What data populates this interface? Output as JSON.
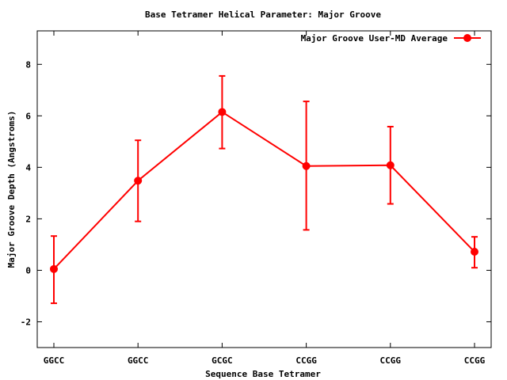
{
  "chart_data": {
    "type": "line",
    "title": "Base Tetramer Helical Parameter: Major Groove",
    "xlabel": "Sequence Base Tetramer",
    "ylabel": "Major Groove Depth (Angstroms)",
    "categories": [
      "GGCC",
      "GGCC",
      "GCGC",
      "CCGG",
      "CCGG",
      "CCGG"
    ],
    "ylim": [
      -3,
      9.3
    ],
    "yticks": [
      -2,
      0,
      2,
      4,
      6,
      8
    ],
    "grid": false,
    "legend_position": "top-right",
    "series": [
      {
        "name": "Major Groove User-MD Average",
        "color": "#ff0000",
        "values": [
          0.05,
          3.48,
          6.15,
          4.05,
          4.08,
          0.72
        ],
        "err_low": [
          -1.28,
          1.9,
          4.73,
          1.57,
          2.58,
          0.1
        ],
        "err_high": [
          1.33,
          5.05,
          7.55,
          6.56,
          5.58,
          1.3
        ]
      }
    ]
  }
}
